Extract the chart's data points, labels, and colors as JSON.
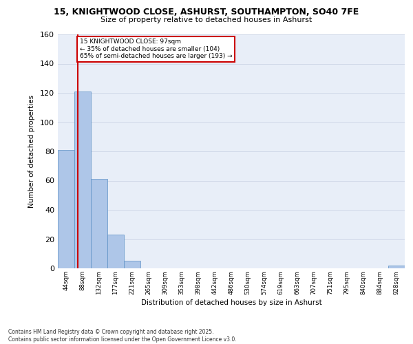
{
  "title_line1": "15, KNIGHTWOOD CLOSE, ASHURST, SOUTHAMPTON, SO40 7FE",
  "title_line2": "Size of property relative to detached houses in Ashurst",
  "xlabel": "Distribution of detached houses by size in Ashurst",
  "ylabel": "Number of detached properties",
  "categories": [
    "44sqm",
    "88sqm",
    "132sqm",
    "177sqm",
    "221sqm",
    "265sqm",
    "309sqm",
    "353sqm",
    "398sqm",
    "442sqm",
    "486sqm",
    "530sqm",
    "574sqm",
    "619sqm",
    "663sqm",
    "707sqm",
    "751sqm",
    "795sqm",
    "840sqm",
    "884sqm",
    "928sqm"
  ],
  "values": [
    81,
    121,
    61,
    23,
    5,
    0,
    0,
    0,
    0,
    0,
    0,
    0,
    0,
    0,
    0,
    0,
    0,
    0,
    0,
    0,
    2
  ],
  "bar_color": "#aec6e8",
  "bar_edge_color": "#5a8fc4",
  "annotation_box_text": "15 KNIGHTWOOD CLOSE: 97sqm\n← 35% of detached houses are smaller (104)\n65% of semi-detached houses are larger (193) →",
  "annotation_box_color": "#ffffff",
  "annotation_box_edge_color": "#cc0000",
  "redline_color": "#cc0000",
  "ylim": [
    0,
    160
  ],
  "yticks": [
    0,
    20,
    40,
    60,
    80,
    100,
    120,
    140,
    160
  ],
  "grid_color": "#d0d8e8",
  "bg_color": "#e8eef8",
  "footer": "Contains HM Land Registry data © Crown copyright and database right 2025.\nContains public sector information licensed under the Open Government Licence v3.0."
}
